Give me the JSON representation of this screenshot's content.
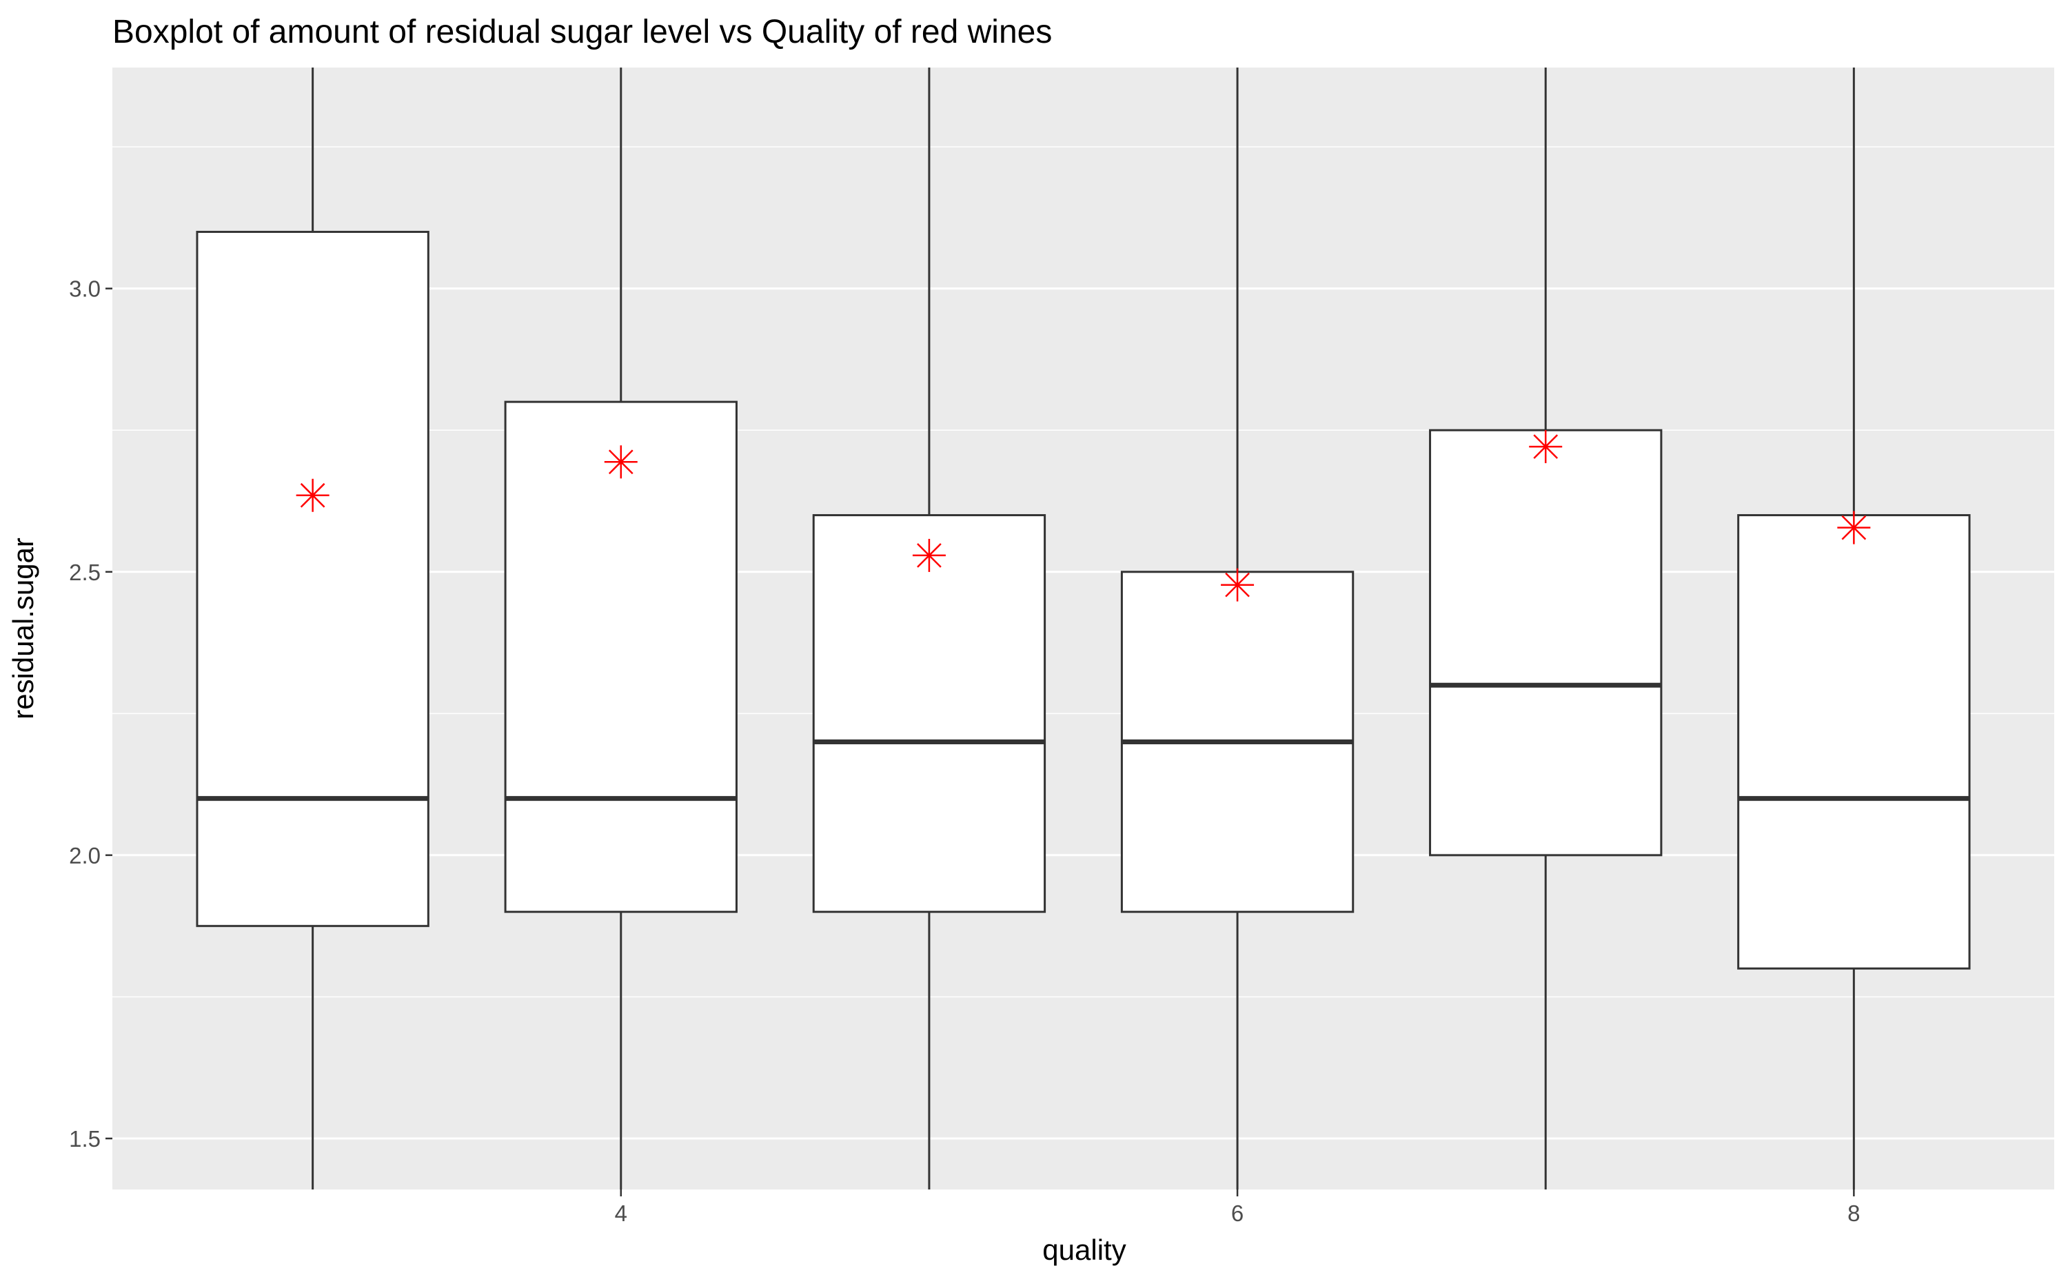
{
  "chart_data": {
    "type": "boxplot",
    "title": "Boxplot of amount of residual sugar level vs Quality of red wines",
    "xlabel": "quality",
    "ylabel": "residual.sugar",
    "x_ticks": [
      4,
      6,
      8
    ],
    "y_ticks": [
      1.5,
      2.0,
      2.5,
      3.0
    ],
    "y_tick_labels": [
      "1.5",
      "2.0",
      "2.5",
      "3.0"
    ],
    "xlim": [
      2.35,
      8.65
    ],
    "ylim": [
      1.41,
      3.39
    ],
    "grid": true,
    "boxes": [
      {
        "quality": 3,
        "q1": 1.875,
        "median": 2.1,
        "q3": 3.1,
        "mean": 2.635
      },
      {
        "quality": 4,
        "q1": 1.9,
        "median": 2.1,
        "q3": 2.8,
        "mean": 2.694
      },
      {
        "quality": 5,
        "q1": 1.9,
        "median": 2.2,
        "q3": 2.6,
        "mean": 2.529
      },
      {
        "quality": 6,
        "q1": 1.9,
        "median": 2.2,
        "q3": 2.5,
        "mean": 2.477
      },
      {
        "quality": 7,
        "q1": 2.0,
        "median": 2.3,
        "q3": 2.75,
        "mean": 2.721
      },
      {
        "quality": 8,
        "q1": 1.8,
        "median": 2.1,
        "q3": 2.6,
        "mean": 2.578
      }
    ],
    "mean_marker_color": "#ff0000",
    "panel_background": "#ebebeb",
    "grid_color": "#ffffff",
    "box_fill": "#ffffff",
    "box_stroke": "#333333"
  }
}
